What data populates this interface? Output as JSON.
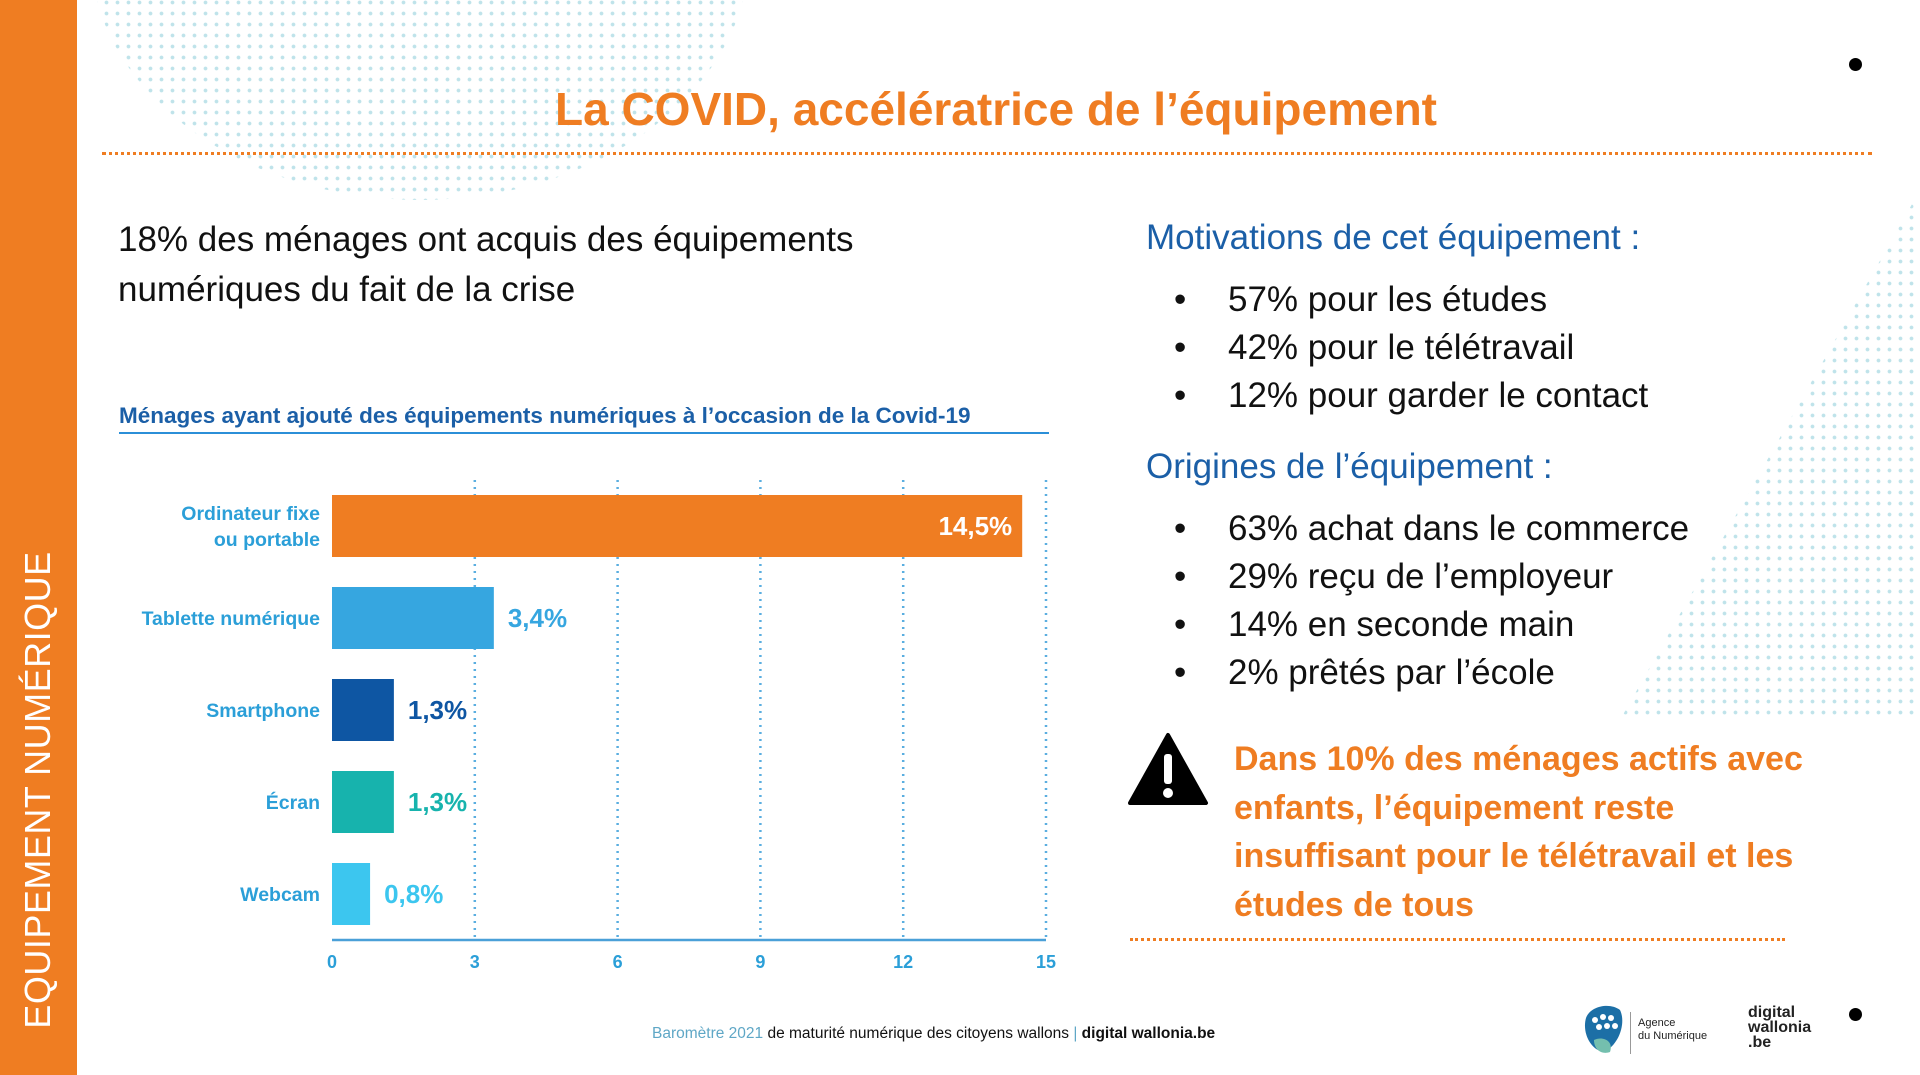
{
  "sidebar": {
    "label": "EQUIPEMENT NUMÉRIQUE"
  },
  "title": "La COVID, accélératrice de l’équipement",
  "intro": "18% des ménages ont acquis des équipements numériques du fait de la crise",
  "chart_title": "Ménages ayant ajouté des équipements numériques à l’occasion de la Covid-19",
  "chart_data": {
    "type": "bar",
    "orientation": "horizontal",
    "title": "Ménages ayant ajouté des équipements numériques à l’occasion de la Covid-19",
    "categories": [
      [
        "Ordinateur fixe",
        "ou portable"
      ],
      [
        "Tablette numérique"
      ],
      [
        "Smartphone"
      ],
      [
        "Écran"
      ],
      [
        "Webcam"
      ]
    ],
    "values": [
      14.5,
      3.4,
      1.3,
      1.3,
      0.8
    ],
    "value_labels": [
      "14,5%",
      "3,4%",
      "1,3%",
      "1,3%",
      "0,8%"
    ],
    "bar_colors": [
      "#ef7d22",
      "#36a6e0",
      "#0e56a3",
      "#17b3ad",
      "#3cc6ef"
    ],
    "label_colors": [
      "#ffffff",
      "#36a6e0",
      "#0e56a3",
      "#17b3ad",
      "#3cc6ef"
    ],
    "xlim": [
      0,
      15
    ],
    "xticks": [
      "0",
      "3",
      "6",
      "9",
      "12",
      "15"
    ],
    "grid": true
  },
  "motivations": {
    "heading": "Motivations de cet équipement :",
    "items": [
      "57% pour les études",
      "42% pour le télétravail",
      "12% pour garder le contact"
    ]
  },
  "origines": {
    "heading": "Origines de l’équipement :",
    "items": [
      "63% achat dans le commerce",
      "29% reçu de l’employeur",
      "14% en seconde main",
      "2% prêtés par l’école"
    ]
  },
  "warning": {
    "icon": "warning-triangle-icon",
    "text": "Dans 10% des ménages actifs avec enfants, l’équipement reste insuffisant pour le télétravail et les études de tous"
  },
  "footer": {
    "part1": "Baromètre 2021",
    "part2": " de maturité numérique des citoyens wallons ",
    "sep": "|",
    "part3": " digital wallonia.be"
  },
  "logos": {
    "agence_line1": "Agence",
    "agence_line2": "du Numérique",
    "dw_line1": "digital",
    "dw_line2": "wallonia",
    "dw_line3": ".be"
  },
  "colors": {
    "accent": "#ef7d22",
    "heading_blue": "#1b5fa7"
  }
}
